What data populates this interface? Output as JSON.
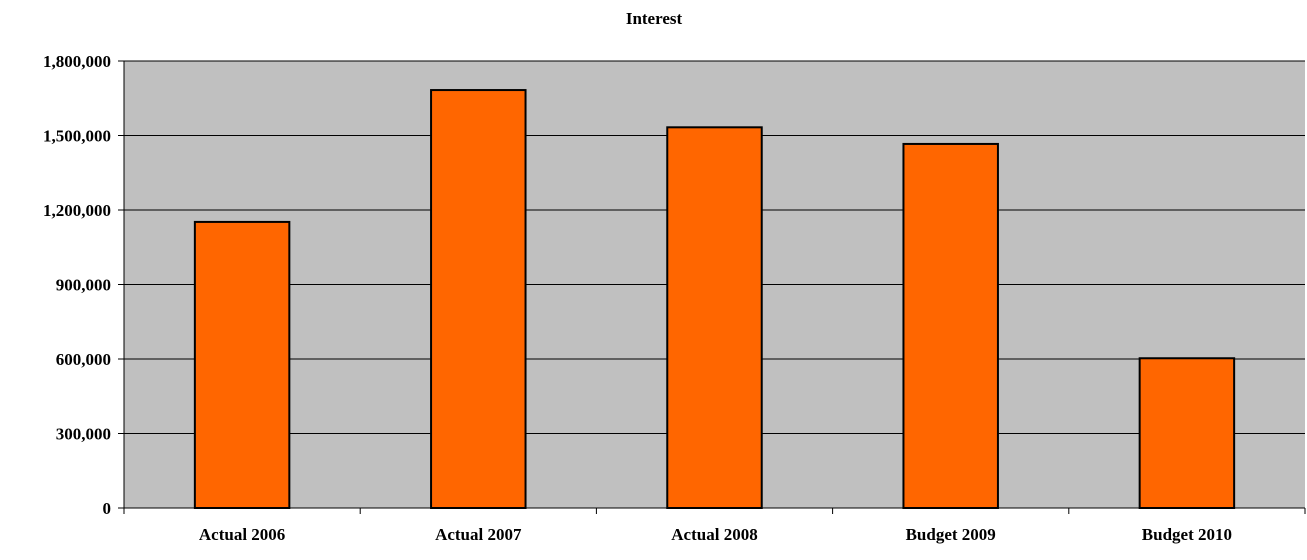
{
  "chart_data": {
    "type": "bar",
    "title": "Interest",
    "xlabel": "",
    "ylabel": "",
    "categories": [
      "Actual 2006",
      "Actual 2007",
      "Actual 2008",
      "Budget 2009",
      "Budget 2010"
    ],
    "values": [
      1152000,
      1683000,
      1533000,
      1466000,
      603000
    ],
    "ylim": [
      0,
      1800000
    ],
    "yticks": [
      0,
      300000,
      600000,
      900000,
      1200000,
      1500000,
      1800000
    ],
    "ytick_labels": [
      "0",
      "300,000",
      "600,000",
      "900,000",
      "1,200,000",
      "1,500,000",
      "1,800,000"
    ],
    "grid": true,
    "legend": "none",
    "colors": {
      "bar": "#ff6600",
      "bar_edge": "#000000",
      "plot_background": "#c0c0c0",
      "gridline": "#000000"
    }
  }
}
